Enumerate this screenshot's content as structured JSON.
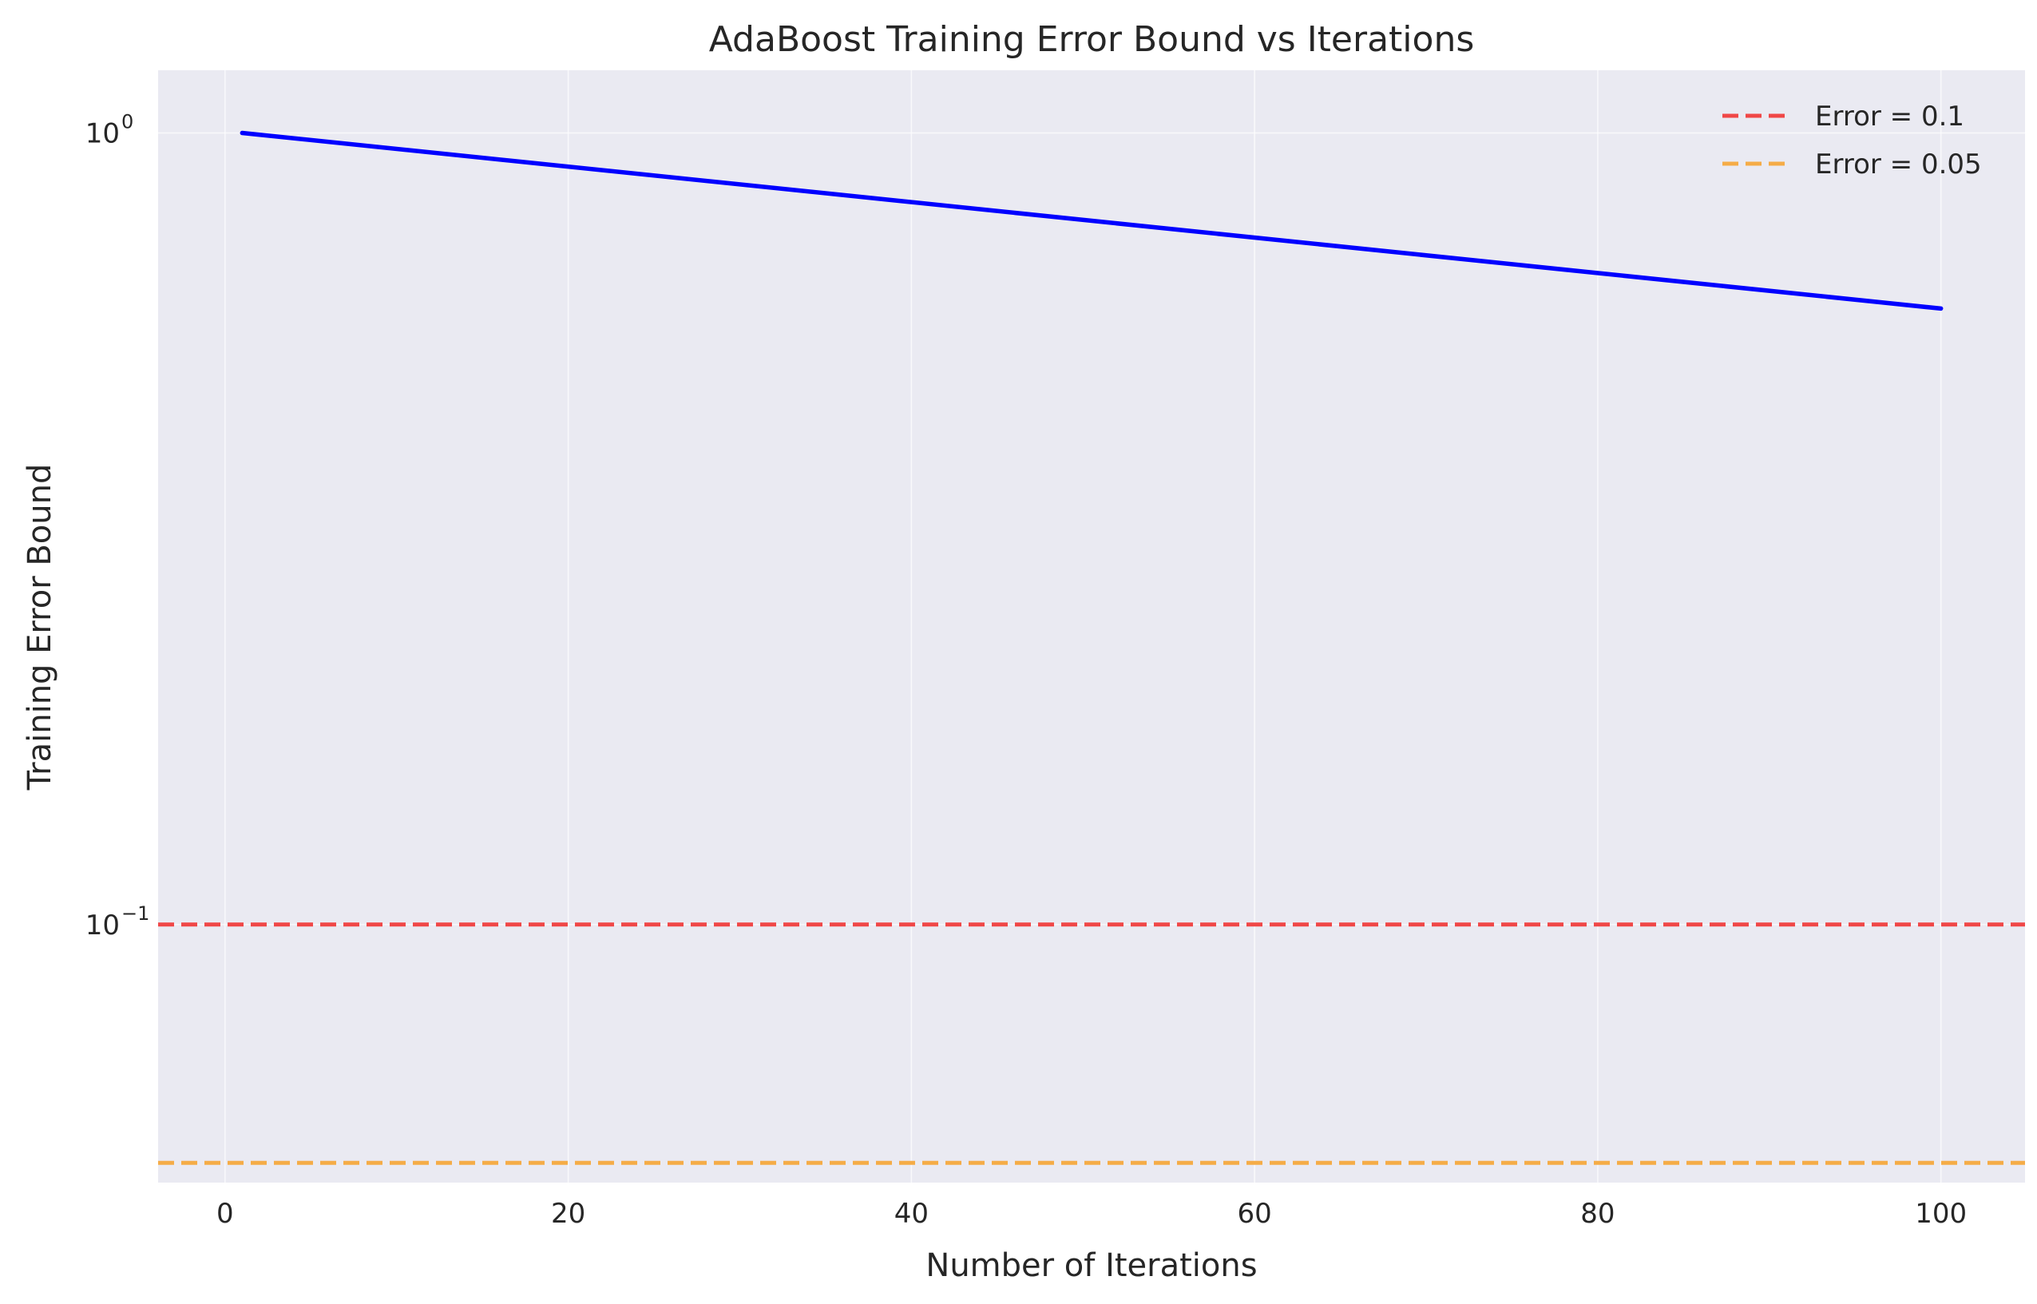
{
  "chart_data": {
    "type": "line",
    "title": "AdaBoost Training Error Bound vs Iterations",
    "xlabel": "Number of Iterations",
    "ylabel": "Training Error Bound",
    "xlim": [
      -3.9,
      104.9
    ],
    "ylim": [
      0.0472,
      1.2
    ],
    "yscale": "log",
    "grid": true,
    "xticks": [
      0,
      20,
      40,
      60,
      80,
      100
    ],
    "yticks": [
      {
        "value": 1,
        "base": "10",
        "exp": "0"
      },
      {
        "value": 0.1,
        "base": "10",
        "exp": "−1"
      }
    ],
    "series": [
      {
        "name": "",
        "color": "#0000ff",
        "style": "solid",
        "x": [
          1,
          100
        ],
        "y": [
          1.0,
          0.6
        ]
      }
    ],
    "hlines": [
      {
        "name": "Error = 0.1",
        "y": 0.1,
        "color": "#f04747",
        "style": "dashed"
      },
      {
        "name": "Error = 0.05",
        "y": 0.05,
        "color": "#f5ac47",
        "style": "dashed"
      }
    ],
    "legend": {
      "placement": "top-right",
      "entries": [
        "Error = 0.1",
        "Error = 0.05"
      ]
    }
  }
}
